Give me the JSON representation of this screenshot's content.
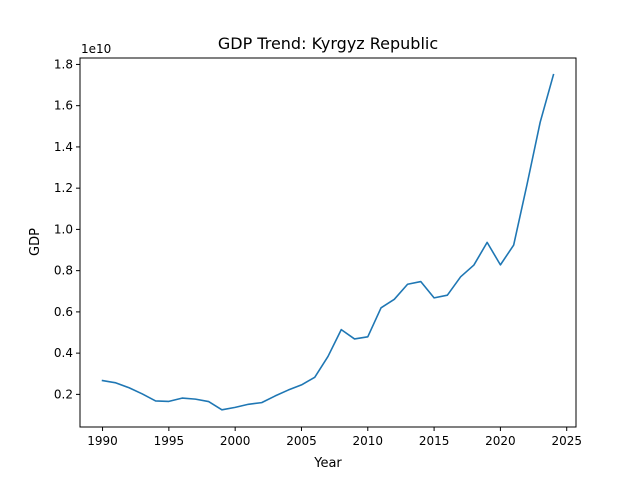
{
  "chart_data": {
    "type": "line",
    "title": "GDP Trend: Kyrgyz Republic",
    "xlabel": "Year",
    "ylabel": "GDP",
    "y_offset_label": "1e10",
    "xlim": [
      1988.3,
      2025.7
    ],
    "ylim": [
      0.0418,
      1.8312
    ],
    "x_ticks": [
      1990,
      1995,
      2000,
      2005,
      2010,
      2015,
      2020,
      2025
    ],
    "y_ticks": [
      0.2,
      0.4,
      0.6,
      0.8,
      1.0,
      1.2,
      1.4,
      1.6,
      1.8
    ],
    "y_tick_labels": [
      "0.2",
      "0.4",
      "0.6",
      "0.8",
      "1.0",
      "1.2",
      "1.4",
      "1.6",
      "1.8"
    ],
    "grid": false,
    "series": [
      {
        "color": "#1f77b4",
        "x": [
          1990,
          1991,
          1992,
          1993,
          1994,
          1995,
          1996,
          1997,
          1998,
          1999,
          2000,
          2001,
          2002,
          2003,
          2004,
          2005,
          2006,
          2007,
          2008,
          2009,
          2010,
          2011,
          2012,
          2013,
          2014,
          2015,
          2016,
          2017,
          2018,
          2019,
          2020,
          2021,
          2022,
          2023,
          2024
        ],
        "y": [
          0.267,
          0.256,
          0.232,
          0.202,
          0.168,
          0.166,
          0.182,
          0.177,
          0.165,
          0.125,
          0.137,
          0.152,
          0.16,
          0.192,
          0.221,
          0.246,
          0.283,
          0.384,
          0.514,
          0.469,
          0.479,
          0.62,
          0.661,
          0.734,
          0.747,
          0.668,
          0.681,
          0.77,
          0.827,
          0.937,
          0.828,
          0.924,
          1.216,
          1.52,
          1.75
        ]
      }
    ]
  }
}
